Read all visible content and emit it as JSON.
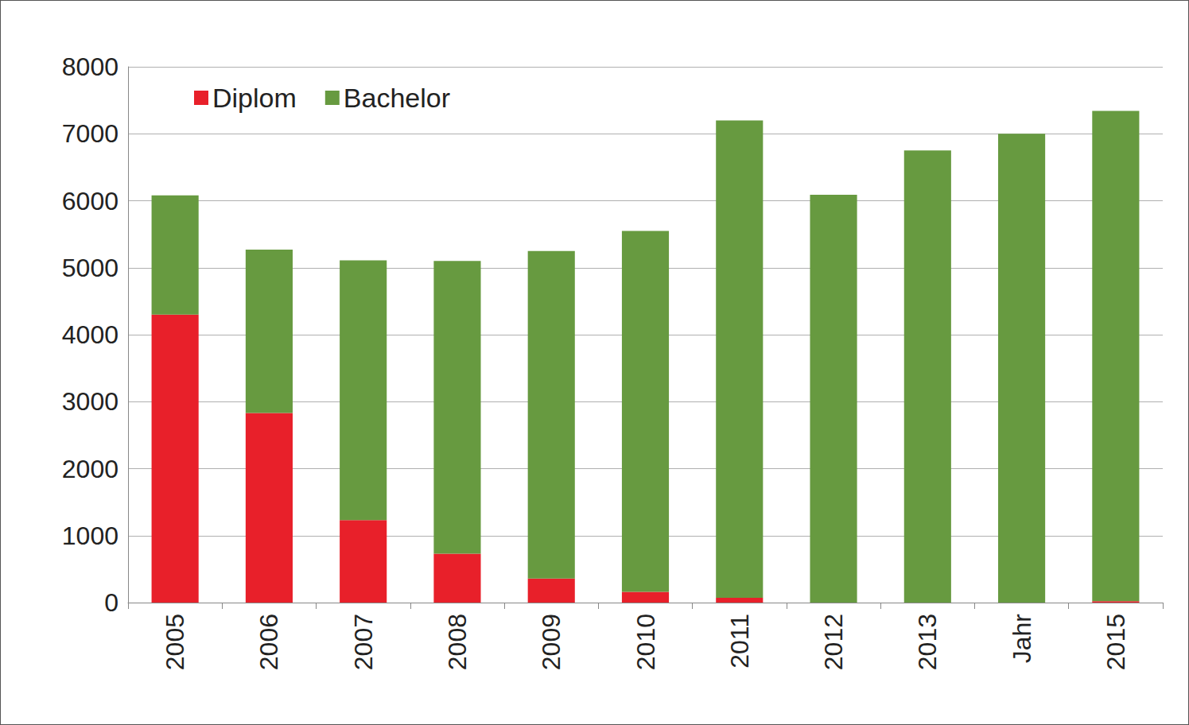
{
  "chart_data": {
    "type": "bar",
    "stacked": true,
    "categories": [
      "2005",
      "2006",
      "2007",
      "2008",
      "2009",
      "2010",
      "2011",
      "2012",
      "2013",
      "Jahr",
      "2015"
    ],
    "series": [
      {
        "name": "Diplom",
        "color": "#e8202a",
        "values": [
          4300,
          2830,
          1230,
          730,
          360,
          160,
          70,
          0,
          0,
          0,
          20
        ]
      },
      {
        "name": "Bachelor",
        "color": "#679a40",
        "values": [
          1780,
          2440,
          3880,
          4370,
          4890,
          5390,
          7130,
          6090,
          6750,
          7000,
          7320
        ]
      }
    ],
    "ylim": [
      0,
      8000
    ],
    "yticks": [
      0,
      1000,
      2000,
      3000,
      4000,
      5000,
      6000,
      7000,
      8000
    ],
    "grid": true,
    "legend": "upper left"
  }
}
